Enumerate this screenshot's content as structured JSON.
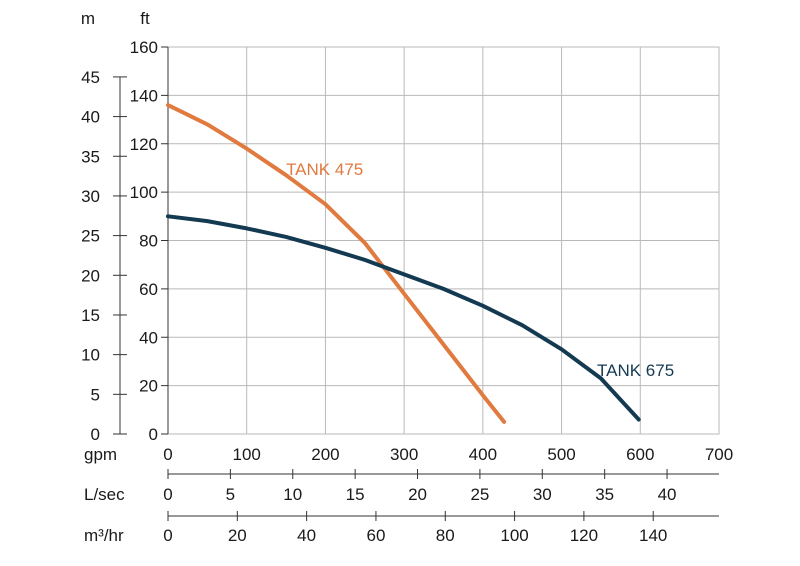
{
  "chart_data": {
    "type": "line",
    "title": "",
    "xlabel": "gpm",
    "ylabel": "ft",
    "xlim": [
      0,
      700
    ],
    "ylim": [
      0,
      160
    ],
    "grid": true,
    "x_ticks": [
      "0",
      "100",
      "200",
      "300",
      "400",
      "500",
      "600",
      "700"
    ],
    "y_ticks_ft": [
      "0",
      "20",
      "40",
      "60",
      "80",
      "100",
      "120",
      "140",
      "160"
    ],
    "secondary_y_axis": {
      "label": "m",
      "ticks": [
        "0",
        "5",
        "10",
        "15",
        "20",
        "25",
        "30",
        "35",
        "40",
        "45"
      ],
      "values": [
        0,
        5,
        10,
        15,
        20,
        25,
        30,
        35,
        40,
        45
      ],
      "ft_per_unit": 3.2808
    },
    "secondary_x_axes": [
      {
        "label": "L/sec",
        "ticks": [
          "0",
          "5",
          "10",
          "15",
          "20",
          "25",
          "30",
          "35",
          "40"
        ],
        "values": [
          0,
          5,
          10,
          15,
          20,
          25,
          30,
          35,
          40
        ],
        "gpm_per_unit": 15.85
      },
      {
        "label": "m³/hr",
        "ticks": [
          "0",
          "20",
          "40",
          "60",
          "80",
          "100",
          "120",
          "140"
        ],
        "values": [
          0,
          20,
          40,
          60,
          80,
          100,
          120,
          140
        ],
        "gpm_per_unit": 4.403
      }
    ],
    "series": [
      {
        "name": "TANK 475",
        "color": "#e07a3f",
        "label_at": [
          150,
          107
        ],
        "x": [
          0,
          50,
          100,
          150,
          200,
          250,
          300,
          350,
          400,
          427
        ],
        "y": [
          136,
          128,
          118,
          107,
          95,
          79,
          58,
          37,
          16,
          5
        ]
      },
      {
        "name": "TANK 675",
        "color": "#143a52",
        "label_at": [
          545,
          24
        ],
        "x": [
          0,
          50,
          100,
          150,
          200,
          250,
          300,
          350,
          400,
          450,
          500,
          550,
          598
        ],
        "y": [
          90,
          88,
          85,
          81.5,
          77,
          72,
          66,
          60,
          53,
          45,
          35,
          23,
          6
        ]
      }
    ]
  }
}
